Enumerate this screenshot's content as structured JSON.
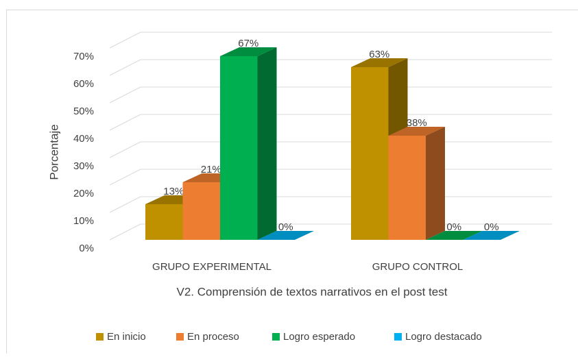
{
  "chart_data": {
    "type": "bar3d",
    "title": "V2. Comprensión de textos narrativos en el post test",
    "y_label": "Porcentaje",
    "categories": [
      "GRUPO EXPERIMENTAL",
      "GRUPO CONTROL"
    ],
    "series": [
      {
        "name": "En inicio",
        "color": "#bf9000",
        "values": [
          13,
          63
        ],
        "value_labels": [
          "13%",
          "63%"
        ]
      },
      {
        "name": "En proceso",
        "color": "#ed7d31",
        "values": [
          21,
          38
        ],
        "value_labels": [
          "21%",
          "38%"
        ]
      },
      {
        "name": "Logro esperado",
        "color": "#00b050",
        "values": [
          67,
          0
        ],
        "value_labels": [
          "67%",
          "0%"
        ]
      },
      {
        "name": "Logro destacado",
        "color": "#00b0f0",
        "values": [
          0,
          0
        ],
        "value_labels": [
          "0%",
          "0%"
        ]
      }
    ],
    "ylim": [
      0,
      70
    ],
    "yticks": [
      {
        "value": 0,
        "label": "0%"
      },
      {
        "value": 10,
        "label": "10%"
      },
      {
        "value": 20,
        "label": "20%"
      },
      {
        "value": 30,
        "label": "30%"
      },
      {
        "value": 40,
        "label": "40%"
      },
      {
        "value": 50,
        "label": "50%"
      },
      {
        "value": 60,
        "label": "60%"
      },
      {
        "value": 70,
        "label": "70%"
      }
    ],
    "grid": true,
    "legend": "bottom"
  }
}
